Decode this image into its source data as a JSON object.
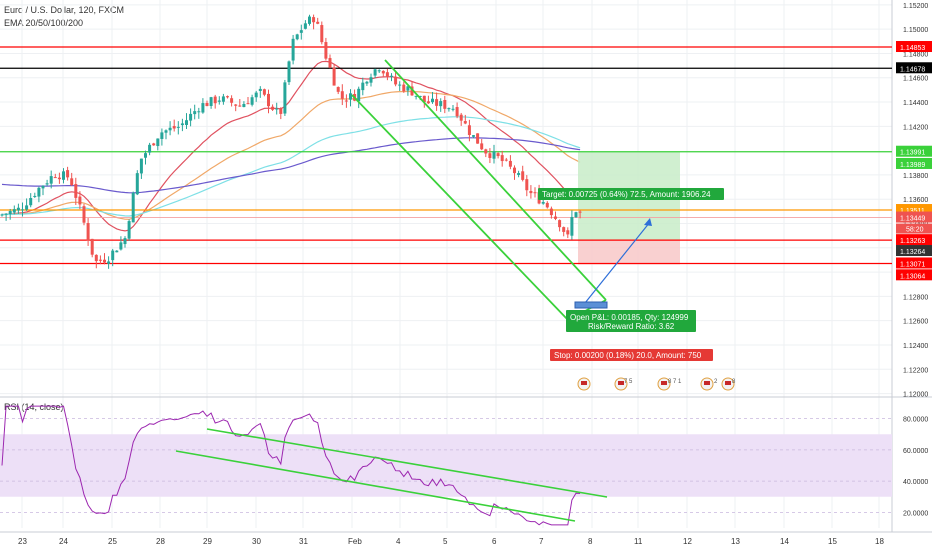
{
  "header": {
    "symbol_line": "Euro / U.S. Dollar, 120, FXCM",
    "indicator_line": "EMA 20/50/100/200",
    "rsi_label": "RSI (14, close)"
  },
  "colors": {
    "bull": "#26a69a",
    "bear": "#ef5350",
    "ema20": "#e05260",
    "ema50": "#f0a868",
    "ema100": "#7ee0e6",
    "ema200": "#6a5acd",
    "channel": "#3ad13a",
    "level_red": "#ff0000",
    "level_black": "#000000",
    "level_orange": "#ff9800",
    "rsi_line": "#9c27b0",
    "rsi_band": "#ede0f7",
    "target_box": "#c8ecc8",
    "stop_box": "#f8c8c8"
  },
  "chart_data": [
    {
      "type": "candlestick",
      "title": "Euro / U.S. Dollar, 120, FXCM",
      "x_ticks": [
        "23",
        "24",
        "25",
        "28",
        "29",
        "30",
        "31",
        "Feb",
        "4",
        "5",
        "6",
        "7",
        "8",
        "11",
        "12",
        "13",
        "14",
        "15",
        "18"
      ],
      "y_ticks": [
        "1.15200",
        "1.15000",
        "1.14800",
        "1.14600",
        "1.14400",
        "1.14200",
        "1.13800",
        "1.13600",
        "1.13400",
        "1.13200",
        "1.13000",
        "1.12800",
        "1.12600",
        "1.12400",
        "1.12200",
        "1.12000"
      ],
      "ylim": [
        1.1198,
        1.1524
      ],
      "price_labels": [
        {
          "value": 1.14853,
          "text": "1.14853",
          "color": "#ff0000"
        },
        {
          "value": 1.14678,
          "text": "1.14678",
          "color": "#000000"
        },
        {
          "value": 1.13991,
          "text": "1.13991",
          "color": "#3ad13a"
        },
        {
          "value": 1.13989,
          "text": "1.13989",
          "color": "#3ad13a"
        },
        {
          "value": 1.13511,
          "text": "1.13511",
          "color": "#ff9800"
        },
        {
          "value": 1.13449,
          "text": "1.13449",
          "color": "#ef5350"
        },
        {
          "value": 1.13263,
          "text": "1.13263",
          "color": "#ff0000"
        },
        {
          "value": 1.13264,
          "text": "1.13264",
          "color": "#333333"
        },
        {
          "value": 1.13071,
          "text": "1.13071",
          "color": "#ff0000"
        },
        {
          "value": 1.13064,
          "text": "1.13064",
          "color": "#ff0000"
        }
      ],
      "countdown": "58:20",
      "horizontal_levels": [
        {
          "value": 1.14853,
          "color": "#ff0000"
        },
        {
          "value": 1.14678,
          "color": "#000000"
        },
        {
          "value": 1.13991,
          "color": "#3ad13a"
        },
        {
          "value": 1.13511,
          "color": "#ff9800"
        },
        {
          "value": 1.13263,
          "color": "#ff0000"
        },
        {
          "value": 1.13071,
          "color": "#ff0000"
        }
      ],
      "position": {
        "target_text": "Target: 0.00725 (0.64%) 72.5, Amount: 1906.24",
        "open_pnl_text": "Open P&L: 0.00185, Qty: 124999",
        "risk_reward_text": "Risk/Reward Ratio: 3.62",
        "stop_text": "Stop: 0.00200 (0.18%) 20.0, Amount: 750",
        "entry": 1.13263,
        "target": 1.13988,
        "stop": 1.13063
      },
      "event_badges": [
        "7 5",
        "8 7 1",
        "2",
        "8"
      ],
      "ema_periods": [
        20,
        50,
        100,
        200
      ]
    },
    {
      "type": "line",
      "title": "RSI (14, close)",
      "y_ticks": [
        "80.0000",
        "60.0000",
        "40.0000",
        "20.0000"
      ],
      "ylim": [
        10,
        90
      ],
      "band": [
        30,
        70
      ]
    }
  ]
}
